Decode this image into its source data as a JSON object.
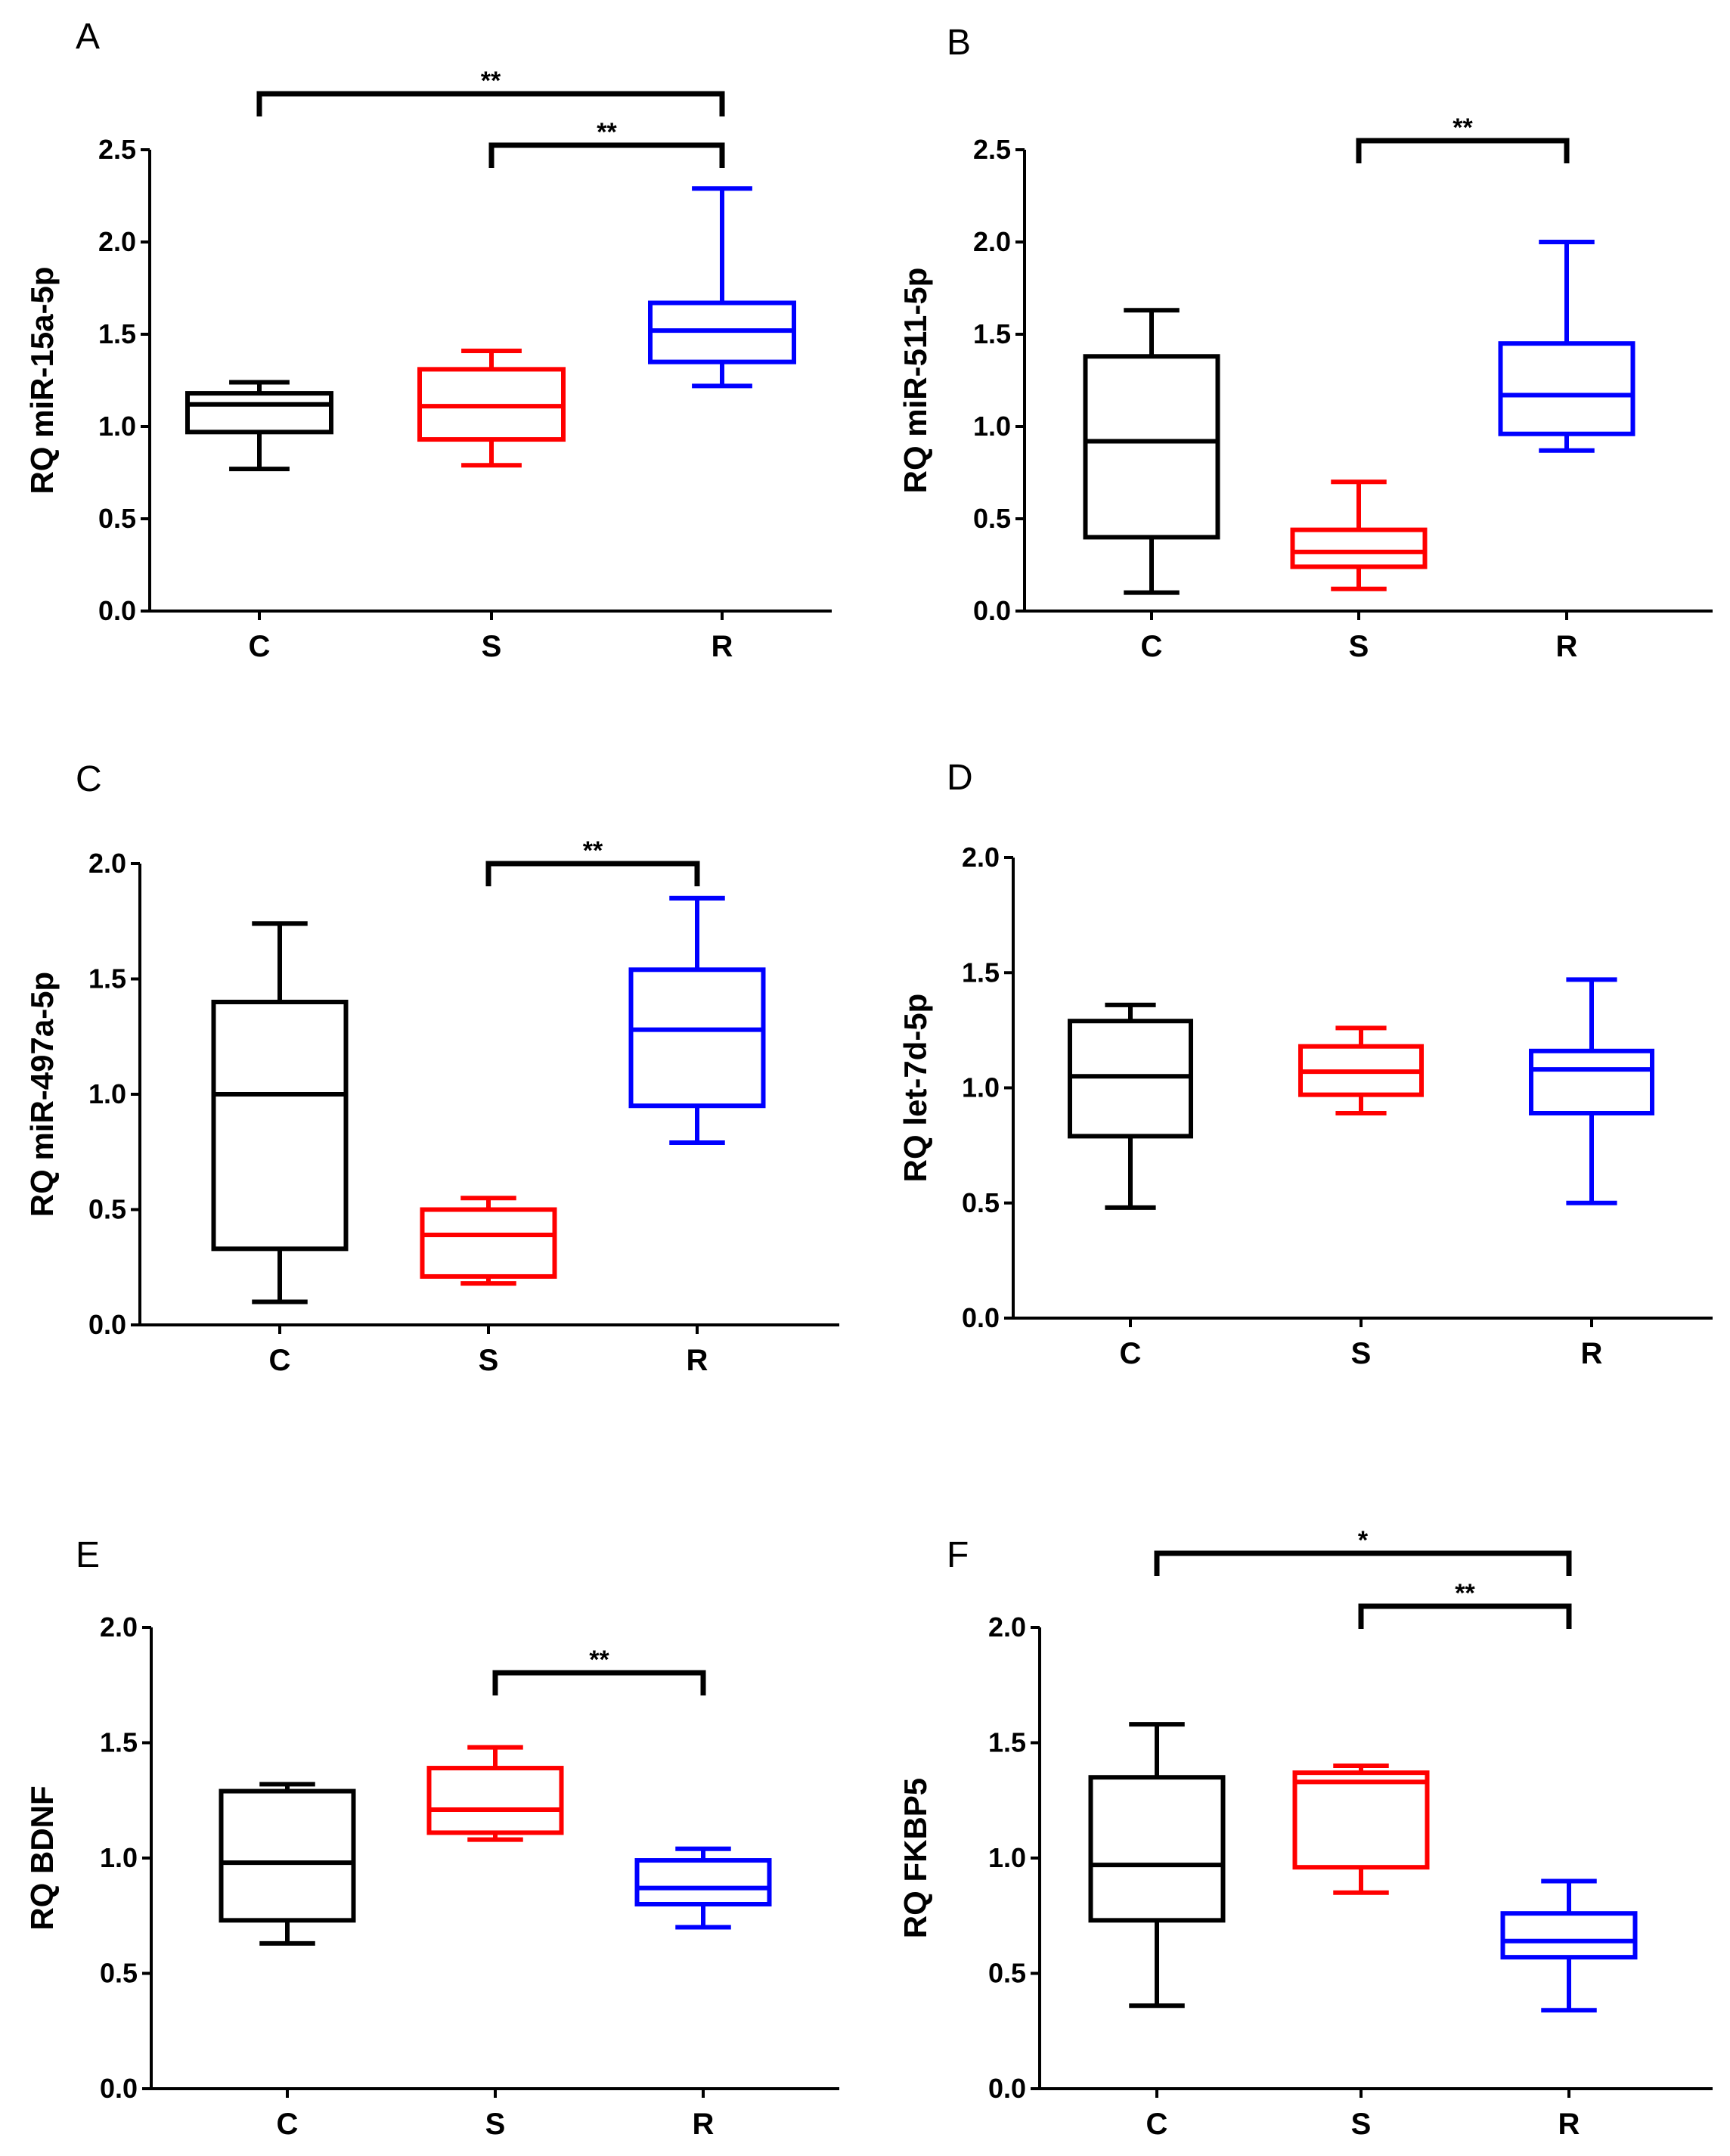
{
  "colors": {
    "C": "#000000",
    "S": "#ff0000",
    "R": "#0000ff",
    "axis": "#000000"
  },
  "chart_data": [
    {
      "type": "box",
      "panel": "A",
      "ylabel": "RQ miR-15a-5p",
      "ylim": [
        0,
        2.5
      ],
      "yticks": [
        "0.0",
        "0.5",
        "1.0",
        "1.5",
        "2.0",
        "2.5"
      ],
      "categories": [
        "C",
        "S",
        "R"
      ],
      "boxes": [
        {
          "group": "C",
          "min": 0.77,
          "q1": 0.97,
          "median": 1.12,
          "q3": 1.18,
          "max": 1.24
        },
        {
          "group": "S",
          "min": 0.79,
          "q1": 0.93,
          "median": 1.11,
          "q3": 1.31,
          "max": 1.41
        },
        {
          "group": "R",
          "min": 1.22,
          "q1": 1.35,
          "median": 1.52,
          "q3": 1.67,
          "max": 2.29
        }
      ],
      "significance": [
        {
          "from": "C",
          "to": "R",
          "label": "**"
        },
        {
          "from": "S",
          "to": "R",
          "label": "**"
        }
      ]
    },
    {
      "type": "box",
      "panel": "B",
      "ylabel": "RQ miR-511-5p",
      "ylim": [
        0,
        2.5
      ],
      "yticks": [
        "0.0",
        "0.5",
        "1.0",
        "1.5",
        "2.0",
        "2.5"
      ],
      "categories": [
        "C",
        "S",
        "R"
      ],
      "boxes": [
        {
          "group": "C",
          "min": 0.1,
          "q1": 0.4,
          "median": 0.92,
          "q3": 1.38,
          "max": 1.63
        },
        {
          "group": "S",
          "min": 0.12,
          "q1": 0.24,
          "median": 0.32,
          "q3": 0.44,
          "max": 0.7
        },
        {
          "group": "R",
          "min": 0.87,
          "q1": 0.96,
          "median": 1.17,
          "q3": 1.45,
          "max": 2.0
        }
      ],
      "significance": [
        {
          "from": "S",
          "to": "R",
          "label": "**"
        }
      ]
    },
    {
      "type": "box",
      "panel": "C",
      "ylabel": "RQ miR-497a-5p",
      "ylim": [
        0,
        2.0
      ],
      "yticks": [
        "0.0",
        "0.5",
        "1.0",
        "1.5",
        "2.0"
      ],
      "categories": [
        "C",
        "S",
        "R"
      ],
      "boxes": [
        {
          "group": "C",
          "min": 0.1,
          "q1": 0.33,
          "median": 1.0,
          "q3": 1.4,
          "max": 1.74
        },
        {
          "group": "S",
          "min": 0.18,
          "q1": 0.21,
          "median": 0.39,
          "q3": 0.5,
          "max": 0.55
        },
        {
          "group": "R",
          "min": 0.79,
          "q1": 0.95,
          "median": 1.28,
          "q3": 1.54,
          "max": 1.85
        }
      ],
      "significance": [
        {
          "from": "S",
          "to": "R",
          "label": "**"
        }
      ]
    },
    {
      "type": "box",
      "panel": "D",
      "ylabel": "RQ let-7d-5p",
      "ylim": [
        0,
        2.0
      ],
      "yticks": [
        "0.0",
        "0.5",
        "1.0",
        "1.5",
        "2.0"
      ],
      "categories": [
        "C",
        "S",
        "R"
      ],
      "boxes": [
        {
          "group": "C",
          "min": 0.48,
          "q1": 0.79,
          "median": 1.05,
          "q3": 1.29,
          "max": 1.36
        },
        {
          "group": "S",
          "min": 0.89,
          "q1": 0.97,
          "median": 1.07,
          "q3": 1.18,
          "max": 1.26
        },
        {
          "group": "R",
          "min": 0.5,
          "q1": 0.89,
          "median": 1.08,
          "q3": 1.16,
          "max": 1.47
        }
      ],
      "significance": []
    },
    {
      "type": "box",
      "panel": "E",
      "ylabel": "RQ BDNF",
      "ylim": [
        0,
        2.0
      ],
      "yticks": [
        "0.0",
        "0.5",
        "1.0",
        "1.5",
        "2.0"
      ],
      "categories": [
        "C",
        "S",
        "R"
      ],
      "boxes": [
        {
          "group": "C",
          "min": 0.63,
          "q1": 0.73,
          "median": 0.98,
          "q3": 1.29,
          "max": 1.32
        },
        {
          "group": "S",
          "min": 1.08,
          "q1": 1.11,
          "median": 1.21,
          "q3": 1.39,
          "max": 1.48
        },
        {
          "group": "R",
          "min": 0.7,
          "q1": 0.8,
          "median": 0.87,
          "q3": 0.99,
          "max": 1.04
        }
      ],
      "significance": [
        {
          "from": "S",
          "to": "R",
          "label": "**"
        }
      ]
    },
    {
      "type": "box",
      "panel": "F",
      "ylabel": "RQ FKBP5",
      "ylim": [
        0,
        2.0
      ],
      "yticks": [
        "0.0",
        "0.5",
        "1.0",
        "1.5",
        "2.0"
      ],
      "categories": [
        "C",
        "S",
        "R"
      ],
      "boxes": [
        {
          "group": "C",
          "min": 0.36,
          "q1": 0.73,
          "median": 0.97,
          "q3": 1.35,
          "max": 1.58
        },
        {
          "group": "S",
          "min": 0.85,
          "q1": 0.96,
          "median": 1.33,
          "q3": 1.37,
          "max": 1.4
        },
        {
          "group": "R",
          "min": 0.34,
          "q1": 0.57,
          "median": 0.64,
          "q3": 0.76,
          "max": 0.9
        }
      ],
      "significance": [
        {
          "from": "C",
          "to": "R",
          "label": "*"
        },
        {
          "from": "S",
          "to": "R",
          "label": "**"
        }
      ]
    }
  ]
}
